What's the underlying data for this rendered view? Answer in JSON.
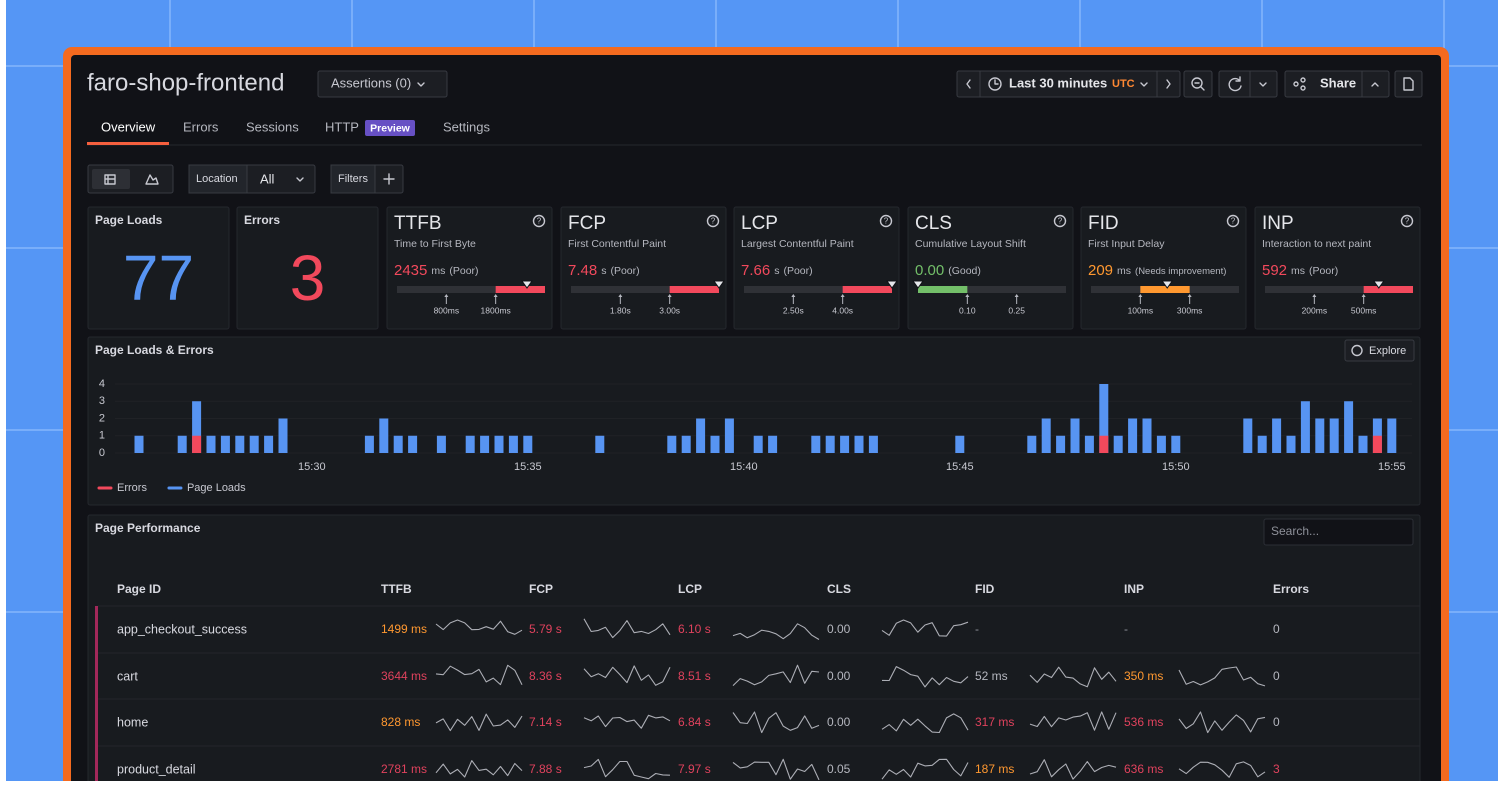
{
  "header": {
    "title": "faro-shop-frontend",
    "assertions": "Assertions (0)",
    "time_range": "Last 30 minutes",
    "timezone": "UTC",
    "share": "Share"
  },
  "tabs": {
    "items": [
      "Overview",
      "Errors",
      "Sessions",
      "HTTP",
      "Settings"
    ],
    "badge": "Preview"
  },
  "toolbar": {
    "location_label": "Location",
    "location_value": "All",
    "filters": "Filters"
  },
  "stats": [
    {
      "label": "Page Loads",
      "value": 77,
      "color": "#5794f2"
    },
    {
      "label": "Errors",
      "value": 3,
      "color": "#f2495c"
    }
  ],
  "vitals": [
    {
      "abbr": "TTFB",
      "name": "Time to First Byte",
      "value": 2435,
      "unit": "ms",
      "rating": "(Poor)",
      "color": "#f2495c",
      "thresholds": [
        {
          "value": 800,
          "label": "800ms"
        },
        {
          "value": 1800,
          "label": "1800ms"
        }
      ]
    },
    {
      "abbr": "FCP",
      "name": "First Contentful Paint",
      "value": 7.48,
      "unit": "s",
      "rating": "(Poor)",
      "color": "#f2495c",
      "thresholds": [
        {
          "value": 1.8,
          "label": "1.80s"
        },
        {
          "value": 3,
          "label": "3.00s"
        }
      ]
    },
    {
      "abbr": "LCP",
      "name": "Largest Contentful Paint",
      "value": 7.66,
      "unit": "s",
      "rating": "(Poor)",
      "color": "#f2495c",
      "thresholds": [
        {
          "value": 2.5,
          "label": "2.50s"
        },
        {
          "value": 4,
          "label": "4.00s"
        }
      ]
    },
    {
      "abbr": "CLS",
      "name": "Cumulative Layout Shift",
      "value": 0,
      "value_label": "0.00",
      "rating": "(Good)",
      "color": "#73bf69",
      "thresholds": [
        {
          "value": 0.1,
          "label": "0.10"
        },
        {
          "value": 0.25,
          "label": "0.25"
        }
      ]
    },
    {
      "abbr": "FID",
      "name": "First Input Delay",
      "value": 209,
      "unit": "ms",
      "rating": "(Needs improvement)",
      "color": "#ff9830",
      "thresholds": [
        {
          "value": 100,
          "label": "100ms"
        },
        {
          "value": 300,
          "label": "300ms"
        }
      ]
    },
    {
      "abbr": "INP",
      "name": "Interaction to next paint",
      "value": 592,
      "unit": "ms",
      "rating": "(Poor)",
      "color": "#f2495c",
      "thresholds": [
        {
          "value": 200,
          "label": "200ms"
        },
        {
          "value": 500,
          "label": "500ms"
        }
      ]
    }
  ],
  "chart_data": {
    "type": "bar",
    "title": "Page Loads & Errors",
    "action": "Explore",
    "categories": [
      null,
      null,
      null,
      null,
      null,
      null,
      null,
      null,
      null,
      null,
      null,
      null,
      "15:30",
      null,
      null,
      null,
      null,
      null,
      null,
      null,
      null,
      null,
      null,
      null,
      null,
      null,
      null,
      "15:35",
      null,
      null,
      null,
      null,
      null,
      null,
      null,
      null,
      null,
      null,
      null,
      null,
      null,
      null,
      "15:40",
      null,
      null,
      null,
      null,
      null,
      null,
      null,
      null,
      null,
      null,
      null,
      null,
      null,
      null,
      "15:45",
      null,
      null,
      null,
      null,
      null,
      null,
      null,
      null,
      null,
      null,
      null,
      null,
      null,
      null,
      "15:50",
      null,
      null,
      null,
      null,
      null,
      null,
      null,
      null,
      null,
      null,
      null,
      null,
      null,
      null,
      "15:55"
    ],
    "series": [
      {
        "name": "Errors",
        "color": "#f2495c",
        "values": [
          0,
          0,
          0,
          0,
          1,
          0,
          0,
          0,
          0,
          0,
          0,
          0,
          0,
          0,
          0,
          0,
          0,
          0,
          0,
          0,
          0,
          0,
          0,
          0,
          0,
          0,
          0,
          0,
          0,
          0,
          0,
          0,
          0,
          0,
          0,
          0,
          0,
          0,
          0,
          0,
          0,
          0,
          0,
          0,
          0,
          0,
          0,
          0,
          0,
          0,
          0,
          0,
          0,
          0,
          0,
          0,
          0,
          0,
          0,
          0,
          0,
          0,
          0,
          0,
          0,
          0,
          0,
          1,
          0,
          0,
          0,
          0,
          0,
          0,
          0,
          0,
          0,
          0,
          0,
          0,
          0,
          0,
          0,
          0,
          0,
          0,
          1,
          0
        ]
      },
      {
        "name": "Page Loads",
        "color": "#5794f2",
        "values": [
          1,
          0,
          0,
          1,
          3,
          1,
          1,
          1,
          1,
          1,
          2,
          0,
          0,
          0,
          0,
          0,
          1,
          2,
          1,
          1,
          0,
          1,
          0,
          1,
          1,
          1,
          1,
          1,
          0,
          0,
          0,
          0,
          1,
          0,
          0,
          0,
          0,
          1,
          1,
          2,
          1,
          2,
          0,
          1,
          1,
          0,
          0,
          1,
          1,
          1,
          1,
          1,
          0,
          0,
          0,
          0,
          0,
          1,
          0,
          0,
          0,
          0,
          1,
          2,
          1,
          2,
          1,
          4,
          1,
          2,
          2,
          1,
          1,
          0,
          0,
          0,
          0,
          2,
          1,
          2,
          1,
          3,
          2,
          2,
          3,
          1,
          2,
          2
        ]
      }
    ],
    "ylim": [
      0,
      4
    ],
    "yticks": [
      0,
      1,
      2,
      3,
      4
    ],
    "grid": true
  },
  "table": {
    "title": "Page Performance",
    "search_placeholder": "Search...",
    "columns": [
      "Page ID",
      "TTFB",
      "FCP",
      "LCP",
      "CLS",
      "FID",
      "INP",
      "Errors"
    ],
    "rows": [
      {
        "cells": [
          "app_checkout_success",
          "1499 ms",
          "5.79 s",
          "6.10 s",
          "0.00",
          "-",
          "-",
          "0"
        ],
        "colors": [
          "#d8d9e0",
          "#ff9830",
          "#e0425d",
          "#e0425d",
          "#b5b7bf",
          "#8e9099",
          "#8e9099",
          "#b5b7bf"
        ]
      },
      {
        "cells": [
          "cart",
          "3644 ms",
          "8.36 s",
          "8.51 s",
          "0.00",
          "52 ms",
          "350 ms",
          "0"
        ],
        "colors": [
          "#d8d9e0",
          "#e0425d",
          "#e0425d",
          "#e0425d",
          "#b5b7bf",
          "#b5b7bf",
          "#ff9830",
          "#b5b7bf"
        ]
      },
      {
        "cells": [
          "home",
          "828 ms",
          "7.14 s",
          "6.84 s",
          "0.00",
          "317 ms",
          "536 ms",
          "0"
        ],
        "colors": [
          "#d8d9e0",
          "#ff9830",
          "#e0425d",
          "#e0425d",
          "#b5b7bf",
          "#e0425d",
          "#e0425d",
          "#b5b7bf"
        ]
      },
      {
        "cells": [
          "product_detail",
          "2781 ms",
          "7.88 s",
          "7.97 s",
          "0.05",
          "187 ms",
          "636 ms",
          "3"
        ],
        "colors": [
          "#d8d9e0",
          "#e0425d",
          "#e0425d",
          "#e0425d",
          "#b5b7bf",
          "#ff9830",
          "#e0425d",
          "#e0425d"
        ]
      }
    ]
  }
}
